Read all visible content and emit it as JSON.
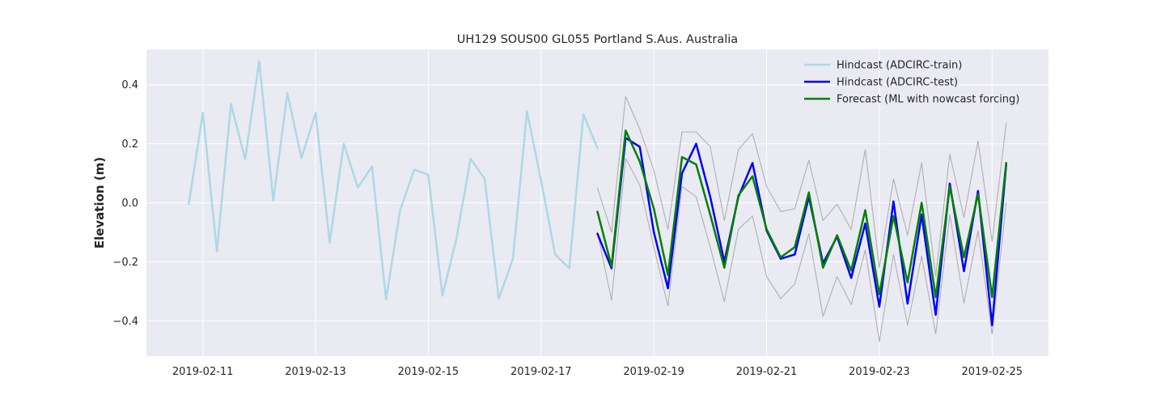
{
  "chart_data": {
    "type": "line",
    "title": "UH129 SOUS00 GL055 Portland S.Aus. Australia",
    "xlabel": "",
    "ylabel": "Elevation (m)",
    "x_axis_type": "date",
    "xlim": [
      "2019-02-10T00:00",
      "2019-02-26T00:00"
    ],
    "ylim": [
      -0.52,
      0.52
    ],
    "xticks": [
      "2019-02-11",
      "2019-02-13",
      "2019-02-15",
      "2019-02-17",
      "2019-02-19",
      "2019-02-21",
      "2019-02-23",
      "2019-02-25"
    ],
    "yticks": [
      -0.4,
      -0.2,
      0.0,
      0.2,
      0.4
    ],
    "ytick_labels": [
      "−0.4",
      "−0.2",
      "0.0",
      "0.2",
      "0.4"
    ],
    "grid": true,
    "background": "#eaeaf2",
    "legend_position": "top-right",
    "series": [
      {
        "name": "Hindcast (ADCIRC-train)",
        "color": "#add8e6",
        "in_legend": true,
        "x": [
          "2019-02-10T18:00",
          "2019-02-11T00:00",
          "2019-02-11T06:00",
          "2019-02-11T12:00",
          "2019-02-11T18:00",
          "2019-02-12T00:00",
          "2019-02-12T06:00",
          "2019-02-12T12:00",
          "2019-02-12T18:00",
          "2019-02-13T00:00",
          "2019-02-13T06:00",
          "2019-02-13T12:00",
          "2019-02-13T18:00",
          "2019-02-14T00:00",
          "2019-02-14T06:00",
          "2019-02-14T12:00",
          "2019-02-14T18:00",
          "2019-02-15T00:00",
          "2019-02-15T06:00",
          "2019-02-15T12:00",
          "2019-02-15T18:00",
          "2019-02-16T00:00",
          "2019-02-16T06:00",
          "2019-02-16T12:00",
          "2019-02-16T18:00",
          "2019-02-17T00:00",
          "2019-02-17T06:00",
          "2019-02-17T12:00",
          "2019-02-17T18:00",
          "2019-02-18T00:00"
        ],
        "values": [
          -0.005,
          0.305,
          -0.165,
          0.335,
          0.148,
          0.48,
          0.008,
          0.372,
          0.152,
          0.305,
          -0.135,
          0.2,
          0.052,
          0.123,
          -0.328,
          -0.025,
          0.112,
          0.095,
          -0.315,
          -0.12,
          0.15,
          0.08,
          -0.325,
          -0.19,
          0.31,
          0.075,
          -0.175,
          -0.222,
          0.3,
          0.185
        ]
      },
      {
        "name": "Hindcast (ADCIRC-test)",
        "color": "#0000ff",
        "in_legend": true,
        "x": [
          "2019-02-18T00:00",
          "2019-02-18T06:00",
          "2019-02-18T12:00",
          "2019-02-18T18:00",
          "2019-02-19T00:00",
          "2019-02-19T06:00",
          "2019-02-19T12:00",
          "2019-02-19T18:00",
          "2019-02-20T00:00",
          "2019-02-20T06:00",
          "2019-02-20T12:00",
          "2019-02-20T18:00",
          "2019-02-21T00:00",
          "2019-02-21T06:00",
          "2019-02-21T12:00",
          "2019-02-21T18:00",
          "2019-02-22T00:00",
          "2019-02-22T06:00",
          "2019-02-22T12:00",
          "2019-02-22T18:00",
          "2019-02-23T00:00",
          "2019-02-23T06:00",
          "2019-02-23T12:00",
          "2019-02-23T18:00",
          "2019-02-24T00:00",
          "2019-02-24T06:00",
          "2019-02-24T12:00",
          "2019-02-24T18:00",
          "2019-02-25T00:00",
          "2019-02-25T06:00"
        ],
        "values": [
          -0.105,
          -0.222,
          0.22,
          0.19,
          -0.1,
          -0.29,
          0.1,
          0.2,
          0.02,
          -0.2,
          0.02,
          0.135,
          -0.095,
          -0.19,
          -0.175,
          0.02,
          -0.205,
          -0.115,
          -0.255,
          -0.07,
          -0.352,
          0.005,
          -0.342,
          -0.04,
          -0.38,
          0.065,
          -0.232,
          0.04,
          -0.415,
          0.13
        ]
      },
      {
        "name": "Forecast (ML with nowcast forcing)",
        "color": "#008000",
        "in_legend": true,
        "x": [
          "2019-02-18T00:00",
          "2019-02-18T06:00",
          "2019-02-18T12:00",
          "2019-02-18T18:00",
          "2019-02-19T00:00",
          "2019-02-19T06:00",
          "2019-02-19T12:00",
          "2019-02-19T18:00",
          "2019-02-20T00:00",
          "2019-02-20T06:00",
          "2019-02-20T12:00",
          "2019-02-20T18:00",
          "2019-02-21T00:00",
          "2019-02-21T06:00",
          "2019-02-21T12:00",
          "2019-02-21T18:00",
          "2019-02-22T00:00",
          "2019-02-22T06:00",
          "2019-02-22T12:00",
          "2019-02-22T18:00",
          "2019-02-23T00:00",
          "2019-02-23T06:00",
          "2019-02-23T12:00",
          "2019-02-23T18:00",
          "2019-02-24T00:00",
          "2019-02-24T06:00",
          "2019-02-24T12:00",
          "2019-02-24T18:00",
          "2019-02-25T00:00",
          "2019-02-25T06:00"
        ],
        "values": [
          -0.03,
          -0.215,
          0.245,
          0.14,
          -0.02,
          -0.245,
          0.155,
          0.13,
          -0.04,
          -0.22,
          0.025,
          0.09,
          -0.09,
          -0.185,
          -0.15,
          0.035,
          -0.22,
          -0.11,
          -0.23,
          -0.025,
          -0.31,
          -0.045,
          -0.27,
          0.0,
          -0.32,
          0.055,
          -0.185,
          0.03,
          -0.32,
          0.135
        ]
      },
      {
        "name": "",
        "color": "#b0b0b0",
        "in_legend": false,
        "x": [
          "2019-02-18T00:00",
          "2019-02-18T06:00",
          "2019-02-18T12:00",
          "2019-02-18T18:00",
          "2019-02-19T00:00",
          "2019-02-19T06:00",
          "2019-02-19T12:00",
          "2019-02-19T18:00",
          "2019-02-20T00:00",
          "2019-02-20T06:00",
          "2019-02-20T12:00",
          "2019-02-20T18:00",
          "2019-02-21T00:00",
          "2019-02-21T06:00",
          "2019-02-21T12:00",
          "2019-02-21T18:00",
          "2019-02-22T00:00",
          "2019-02-22T06:00",
          "2019-02-22T12:00",
          "2019-02-22T18:00",
          "2019-02-23T00:00",
          "2019-02-23T06:00",
          "2019-02-23T12:00",
          "2019-02-23T18:00",
          "2019-02-24T00:00",
          "2019-02-24T06:00",
          "2019-02-24T12:00",
          "2019-02-24T18:00",
          "2019-02-25T00:00",
          "2019-02-25T06:00"
        ],
        "values": [
          0.05,
          -0.1,
          0.36,
          0.25,
          0.11,
          -0.09,
          0.24,
          0.24,
          0.19,
          -0.06,
          0.18,
          0.235,
          0.055,
          -0.03,
          -0.02,
          0.145,
          -0.06,
          -0.005,
          -0.09,
          0.18,
          -0.22,
          0.08,
          -0.11,
          0.135,
          -0.25,
          0.165,
          -0.05,
          0.21,
          -0.13,
          0.27
        ]
      },
      {
        "name": "",
        "color": "#b0b0b0",
        "in_legend": false,
        "x": [
          "2019-02-18T00:00",
          "2019-02-18T06:00",
          "2019-02-18T12:00",
          "2019-02-18T18:00",
          "2019-02-19T00:00",
          "2019-02-19T06:00",
          "2019-02-19T12:00",
          "2019-02-19T18:00",
          "2019-02-20T00:00",
          "2019-02-20T06:00",
          "2019-02-20T12:00",
          "2019-02-20T18:00",
          "2019-02-21T00:00",
          "2019-02-21T06:00",
          "2019-02-21T12:00",
          "2019-02-21T18:00",
          "2019-02-22T00:00",
          "2019-02-22T06:00",
          "2019-02-22T12:00",
          "2019-02-22T18:00",
          "2019-02-23T00:00",
          "2019-02-23T06:00",
          "2019-02-23T12:00",
          "2019-02-23T18:00",
          "2019-02-24T00:00",
          "2019-02-24T06:00",
          "2019-02-24T12:00",
          "2019-02-24T18:00",
          "2019-02-25T00:00",
          "2019-02-25T06:00"
        ],
        "values": [
          -0.1,
          -0.33,
          0.15,
          0.06,
          -0.15,
          -0.35,
          0.055,
          0.02,
          -0.15,
          -0.335,
          -0.09,
          -0.045,
          -0.25,
          -0.325,
          -0.275,
          -0.105,
          -0.385,
          -0.25,
          -0.345,
          -0.16,
          -0.47,
          -0.175,
          -0.415,
          -0.18,
          -0.445,
          -0.04,
          -0.34,
          -0.095,
          -0.445,
          0.0
        ]
      }
    ]
  }
}
